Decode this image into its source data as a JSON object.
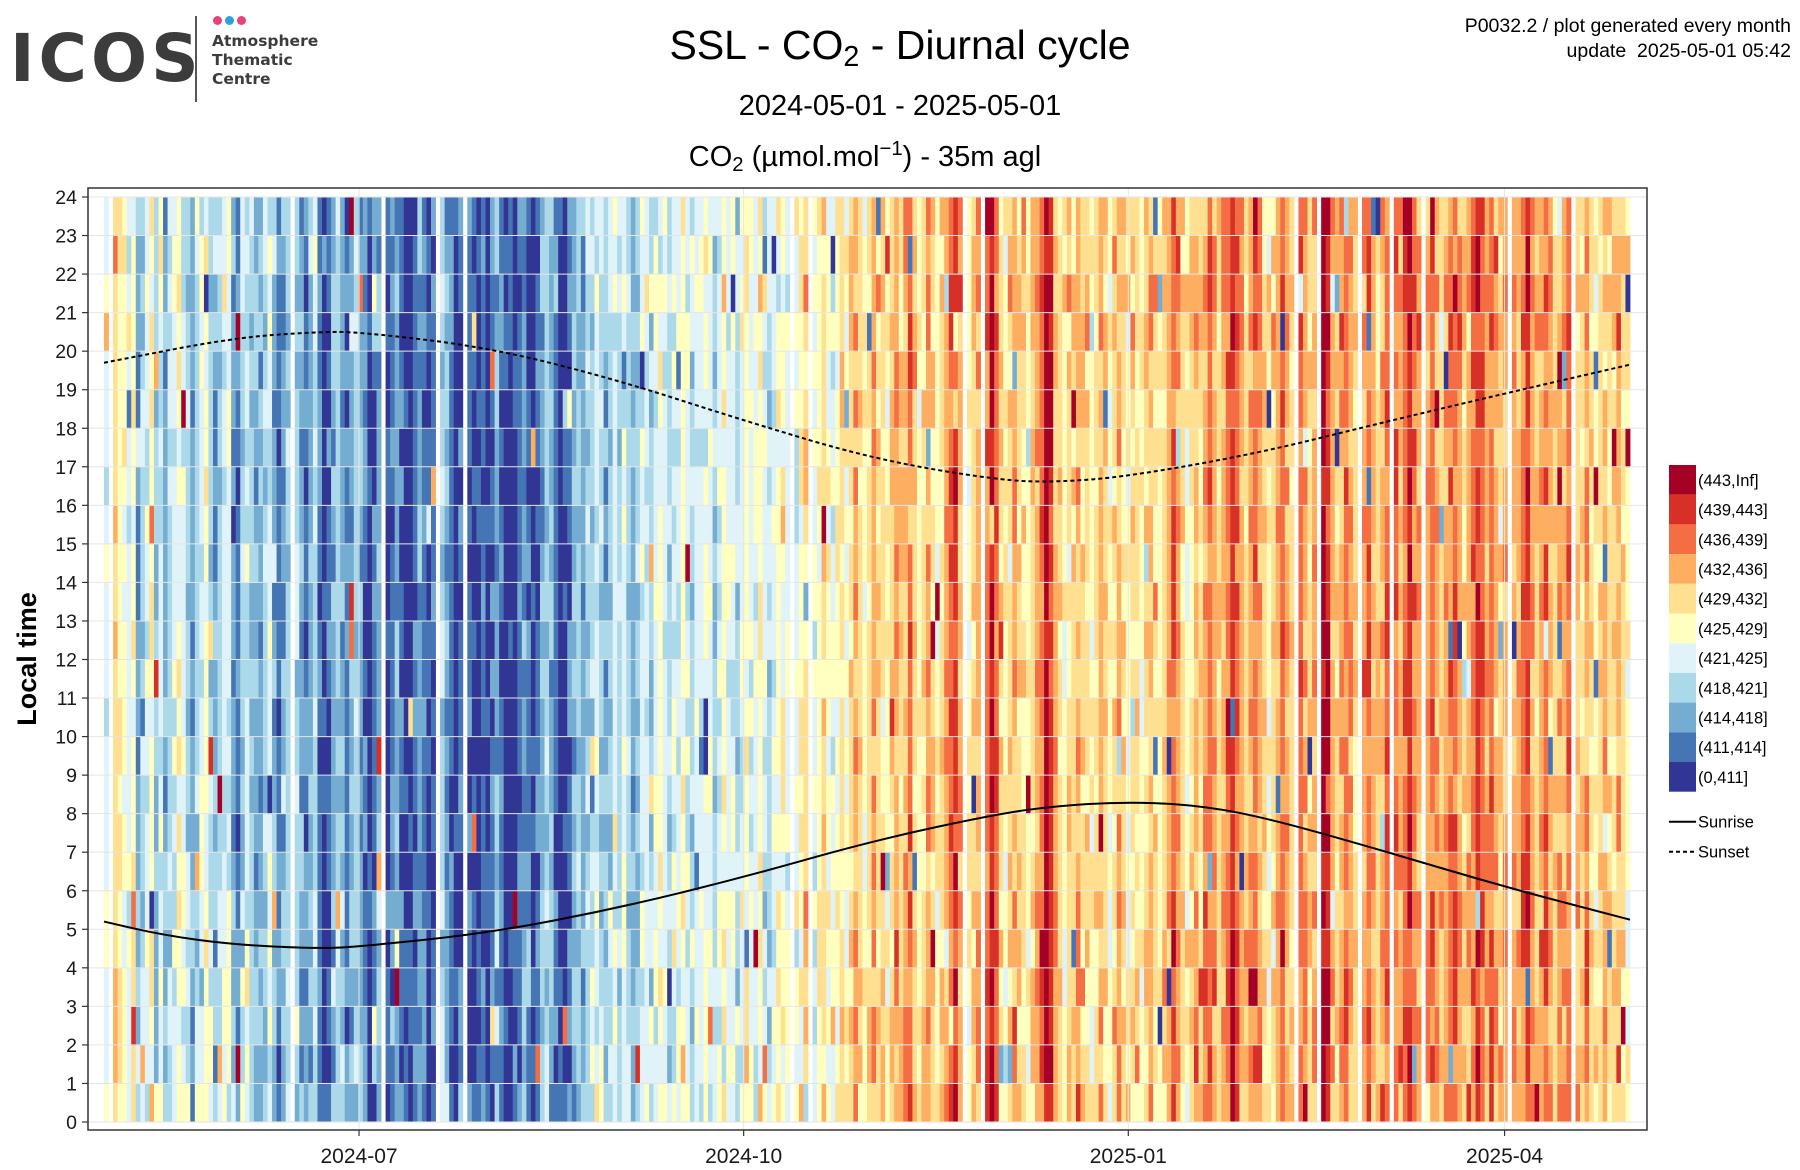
{
  "logo": {
    "word": "ICOS",
    "subtitle": "Atmosphere\nThematic\nCentre",
    "dot_colors": [
      "#e8427c",
      "#29a3e0",
      "#e8427c"
    ]
  },
  "header": {
    "title_pre": "SSL - CO",
    "title_sub": "2",
    "title_post": " - Diurnal cycle",
    "date_range": "2024-05-01 - 2025-05-01",
    "species_pre": "CO",
    "species_sub": "2",
    "species_mid": " (µmol.mol",
    "species_sup": "−1",
    "species_post": ") - 35m agl",
    "plot_id": "P0032.2 / plot generated every month",
    "update": "update  2025-05-01 05:42"
  },
  "chart_data": {
    "type": "heatmap",
    "xlabel": "",
    "ylabel": "Local time",
    "x_range": [
      "2024-05-01",
      "2025-05-01"
    ],
    "ylim": [
      0,
      24
    ],
    "x_ticks": [
      "2024-07",
      "2024-10",
      "2025-01",
      "2025-04"
    ],
    "x_tick_dates": [
      "2024-07-01",
      "2024-10-01",
      "2025-01-01",
      "2025-04-01"
    ],
    "y_ticks": [
      0,
      1,
      2,
      3,
      4,
      5,
      6,
      7,
      8,
      9,
      10,
      11,
      12,
      13,
      14,
      15,
      16,
      17,
      18,
      19,
      20,
      21,
      22,
      23,
      24
    ],
    "grid": true,
    "legend_position": "right",
    "color_classes": [
      {
        "label": "(443,Inf]",
        "color": "#a50026"
      },
      {
        "label": "(439,443]",
        "color": "#d73027"
      },
      {
        "label": "(436,439]",
        "color": "#f46d43"
      },
      {
        "label": "(432,436]",
        "color": "#fdae61"
      },
      {
        "label": "(429,432]",
        "color": "#fee090"
      },
      {
        "label": "(425,429]",
        "color": "#ffffbf"
      },
      {
        "label": "(421,425]",
        "color": "#e0f3f8"
      },
      {
        "label": "(418,421]",
        "color": "#abd9e9"
      },
      {
        "label": "(414,418]",
        "color": "#74add1"
      },
      {
        "label": "(411,414]",
        "color": "#4575b4"
      },
      {
        "label": "(0,411]",
        "color": "#313695"
      }
    ],
    "sun_lines": [
      {
        "name": "Sunrise",
        "style": "solid",
        "points": [
          [
            "2024-05-01",
            5.2
          ],
          [
            "2024-05-15",
            4.85
          ],
          [
            "2024-06-01",
            4.6
          ],
          [
            "2024-06-21",
            4.5
          ],
          [
            "2024-07-01",
            4.55
          ],
          [
            "2024-08-01",
            4.9
          ],
          [
            "2024-09-01",
            5.55
          ],
          [
            "2024-10-01",
            6.35
          ],
          [
            "2024-11-01",
            7.3
          ],
          [
            "2024-12-01",
            8.0
          ],
          [
            "2024-12-15",
            8.2
          ],
          [
            "2024-12-30",
            8.3
          ],
          [
            "2025-01-15",
            8.25
          ],
          [
            "2025-02-01",
            7.95
          ],
          [
            "2025-03-01",
            7.1
          ],
          [
            "2025-04-01",
            6.1
          ],
          [
            "2025-05-01",
            5.25
          ]
        ]
      },
      {
        "name": "Sunset",
        "style": "dashed",
        "points": [
          [
            "2024-05-01",
            19.7
          ],
          [
            "2024-06-01",
            20.35
          ],
          [
            "2024-06-21",
            20.5
          ],
          [
            "2024-07-01",
            20.5
          ],
          [
            "2024-08-01",
            20.1
          ],
          [
            "2024-09-01",
            19.25
          ],
          [
            "2024-10-01",
            18.2
          ],
          [
            "2024-11-01",
            17.2
          ],
          [
            "2024-12-01",
            16.65
          ],
          [
            "2024-12-15",
            16.6
          ],
          [
            "2025-01-01",
            16.75
          ],
          [
            "2025-02-01",
            17.35
          ],
          [
            "2025-03-01",
            18.1
          ],
          [
            "2025-04-01",
            18.9
          ],
          [
            "2025-05-01",
            19.65
          ]
        ]
      }
    ],
    "daily_levels_note": "",
    "daily_levels": [
      6,
      6,
      4,
      5,
      5,
      6,
      5,
      8,
      7,
      6,
      5,
      7,
      6,
      8,
      7,
      6,
      5,
      6,
      7,
      8,
      7,
      6,
      5,
      7,
      8,
      7,
      6,
      6,
      8,
      9,
      7,
      6,
      7,
      8,
      8,
      7,
      6,
      8,
      9,
      8,
      7,
      6,
      7,
      8,
      9,
      8,
      7,
      9,
      10,
      9,
      8,
      7,
      8,
      9,
      8,
      7,
      8,
      9,
      10,
      9,
      8,
      9,
      10,
      9,
      8,
      9,
      10,
      10,
      9,
      8,
      9,
      10,
      9,
      8,
      7,
      8,
      9,
      10,
      9,
      8,
      9,
      10,
      10,
      9,
      10,
      9,
      8,
      9,
      10,
      10,
      10,
      9,
      8,
      9,
      10,
      9,
      8,
      7,
      8,
      9,
      10,
      10,
      9,
      8,
      7,
      8,
      7,
      7,
      6,
      7,
      8,
      7,
      6,
      7,
      6,
      7,
      8,
      7,
      6,
      6,
      7,
      6,
      5,
      6,
      7,
      6,
      6,
      5,
      6,
      7,
      6,
      6,
      5,
      6,
      7,
      6,
      5,
      6,
      6,
      7,
      6,
      5,
      6,
      6,
      5,
      6,
      7,
      6,
      5,
      5,
      6,
      5,
      6,
      5,
      4,
      5,
      6,
      5,
      4,
      5,
      6,
      5,
      4,
      5,
      4,
      3,
      4,
      5,
      4,
      3,
      4,
      4,
      5,
      4,
      3,
      4,
      3,
      2,
      4,
      5,
      4,
      3,
      4,
      5,
      4,
      3,
      2,
      1,
      3,
      4,
      5,
      4,
      3,
      4,
      2,
      0,
      2,
      4,
      5,
      4,
      3,
      4,
      4,
      5,
      4,
      3,
      2,
      0,
      1,
      3,
      4,
      5,
      4,
      4,
      3,
      4,
      4,
      5,
      4,
      3,
      4,
      5,
      4,
      3,
      4,
      5,
      4,
      4,
      5,
      4,
      3,
      4,
      5,
      4,
      3,
      2,
      3,
      4,
      5,
      4,
      3,
      4,
      3,
      2,
      3,
      4,
      3,
      2,
      1,
      2,
      3,
      4,
      3,
      2,
      3,
      4,
      5,
      4,
      3,
      2,
      3,
      4,
      3,
      2,
      3,
      4,
      3,
      2,
      0,
      1,
      3,
      4,
      3,
      2,
      3,
      4,
      3,
      3,
      2,
      3,
      4,
      3,
      2,
      1,
      2,
      3,
      2,
      1,
      2,
      3,
      4,
      3,
      2,
      3,
      4,
      3,
      2,
      2,
      3,
      4,
      3,
      2,
      1,
      2,
      3,
      2,
      3,
      4,
      3,
      2,
      3,
      3,
      2,
      1,
      3,
      4,
      3,
      2,
      3,
      4,
      3,
      3,
      2,
      3,
      4,
      4,
      3,
      4,
      5,
      4,
      3,
      4,
      4,
      3,
      4,
      5
    ]
  }
}
